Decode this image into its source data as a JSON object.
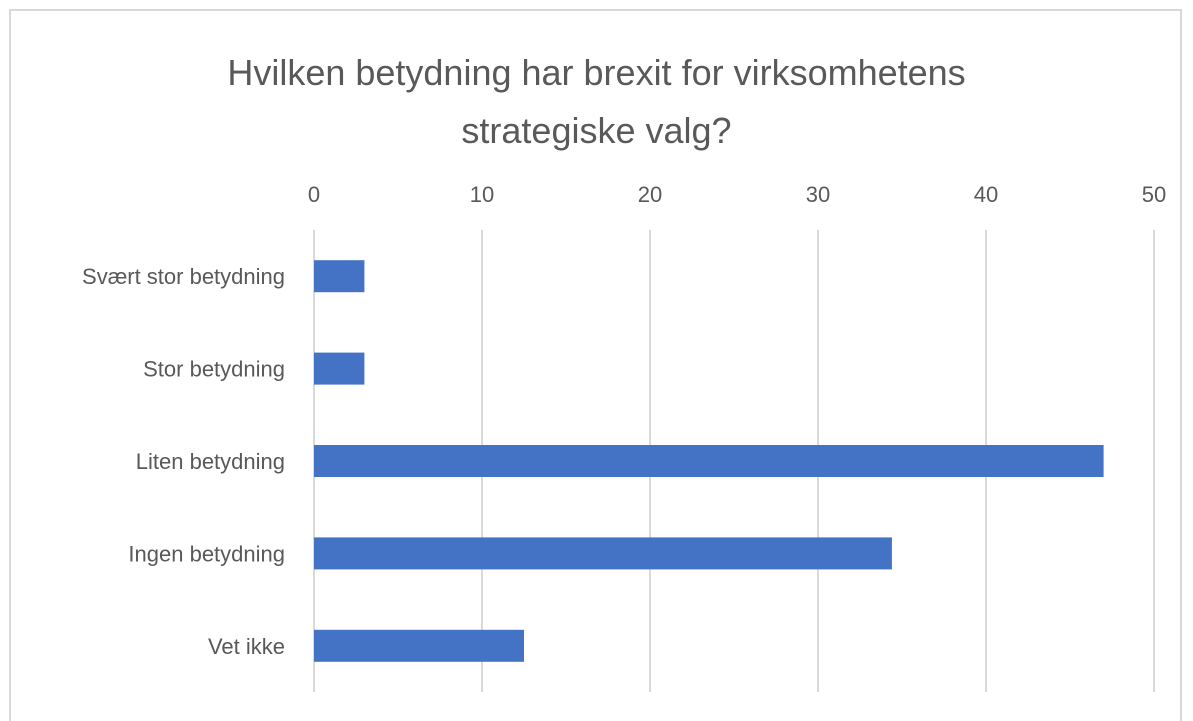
{
  "chart_data": {
    "type": "bar",
    "orientation": "horizontal",
    "title_lines": [
      "Hvilken betydning har brexit for virksomhetens",
      "strategiske valg?"
    ],
    "categories": [
      "Svært stor betydning",
      "Stor betydning",
      "Liten betydning",
      "Ingen betydning",
      "Vet ikke"
    ],
    "values": [
      3,
      3,
      47,
      34.4,
      12.5
    ],
    "xlim": [
      0,
      50
    ],
    "xticks": [
      "0",
      "10",
      "20",
      "30",
      "40",
      "50"
    ],
    "axis_position": "top",
    "grid": true,
    "legend": "none",
    "bar_color": "#4472c4",
    "grid_color": "#d9d9d9",
    "text_color": "#595959"
  }
}
